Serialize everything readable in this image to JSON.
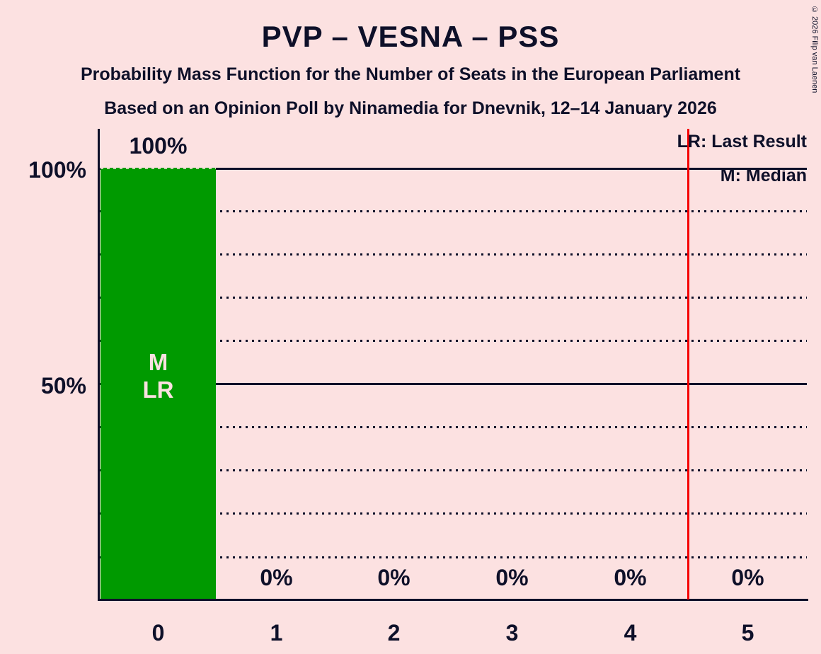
{
  "title": "PVP – VESNA – PSS",
  "subtitle": "Probability Mass Function for the Number of Seats in the European Parliament",
  "source_line": "Based on an Opinion Poll by Ninamedia for Dnevnik, 12–14 January 2026",
  "copyright": "© 2026 Filip van Laenen",
  "legend": {
    "last_result": "LR: Last Result",
    "median": "M: Median"
  },
  "y_axis": {
    "labels": [
      "100%",
      "50%"
    ]
  },
  "x_axis": {
    "labels": [
      "0",
      "1",
      "2",
      "3",
      "4",
      "5"
    ]
  },
  "bar_value_labels": [
    "100%",
    "0%",
    "0%",
    "0%",
    "0%",
    "0%"
  ],
  "bar_annotation": "M\nLR",
  "colors": {
    "background": "#fce1e1",
    "bar": "#009a00",
    "text": "#0e1029",
    "vertical_line": "#f50000",
    "bar_label": "#fce1e1"
  },
  "chart_data": {
    "type": "bar",
    "title": "PVP – VESNA – PSS",
    "categories": [
      "0",
      "1",
      "2",
      "3",
      "4",
      "5"
    ],
    "values": [
      100,
      0,
      0,
      0,
      0,
      0
    ],
    "data_labels": [
      "100%",
      "0%",
      "0%",
      "0%",
      "0%",
      "0%"
    ],
    "xlabel": "",
    "ylabel": "",
    "ylim": [
      0,
      100
    ],
    "y_unit": "percent",
    "y_solid_gridlines": [
      50,
      100
    ],
    "y_dotted_gridlines": [
      10,
      20,
      30,
      40,
      60,
      70,
      80,
      90
    ],
    "y_tick_labels": [
      "50%",
      "100%"
    ],
    "vertical_line_x": 4.5,
    "median_category": "0",
    "last_result_category": "0",
    "legend_entries": [
      "LR: Last Result",
      "M: Median"
    ],
    "legend_position": "top-right",
    "grid": "dotted-horizontal"
  }
}
